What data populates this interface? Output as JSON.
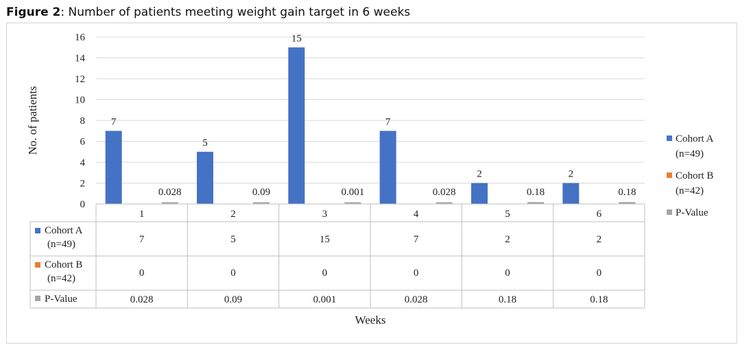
{
  "figure": {
    "label": "Figure 2",
    "title": ": Number of patients meeting weight gain target in 6 weeks"
  },
  "chart_data": {
    "type": "bar",
    "categories": [
      "1",
      "2",
      "3",
      "4",
      "5",
      "6"
    ],
    "series": [
      {
        "name": "Cohort A",
        "name_sub": "(n=49)",
        "values": [
          7,
          5,
          15,
          7,
          2,
          2
        ],
        "color": "#4472C4"
      },
      {
        "name": "Cohort B",
        "name_sub": "(n=42)",
        "values": [
          0,
          0,
          0,
          0,
          0,
          0
        ],
        "color": "#ED7D31"
      },
      {
        "name": "P-Value",
        "name_sub": "",
        "values": [
          0.028,
          0.09,
          0.001,
          0.028,
          0.18,
          0.18
        ],
        "color": "#A5A5A5"
      }
    ],
    "xlabel": "Weeks",
    "ylabel": "No. of patients",
    "ylim": [
      0,
      16
    ],
    "yticks": [
      0,
      2,
      4,
      6,
      8,
      10,
      12,
      14,
      16
    ],
    "grid": true,
    "legend_position": "right",
    "data_table": true
  }
}
